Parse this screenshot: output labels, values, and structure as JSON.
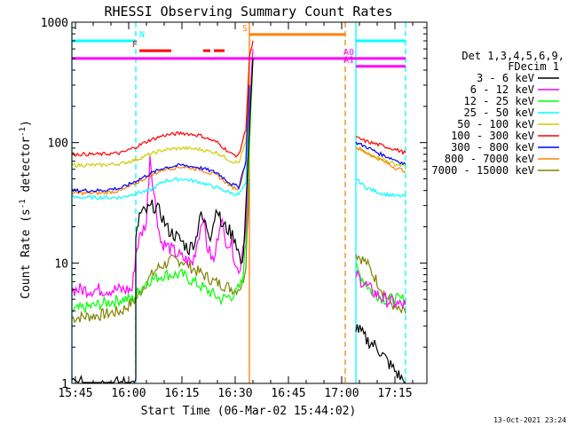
{
  "chart_data": {
    "type": "line",
    "title": "RHESSI Observing Summary Count Rates",
    "xlabel": "Start Time (06-Mar-02 15:44:02)",
    "ylabel_main": "Count Rate (s",
    "ylabel_sup1": "-1",
    "ylabel_mid": " detector",
    "ylabel_sup2": "-1",
    "ylabel_end": ")",
    "y_scale": "log",
    "ylim": [
      1,
      1000
    ],
    "y_ticks": [
      {
        "value": 1,
        "label": "1"
      },
      {
        "value": 10,
        "label": "10"
      },
      {
        "value": 100,
        "label": "100"
      },
      {
        "value": 1000,
        "label": "1000"
      }
    ],
    "xlim": [
      "15:44",
      "17:24"
    ],
    "x_ticks": [
      {
        "value": "15:45",
        "label": "15:45"
      },
      {
        "value": "16:00",
        "label": "16:00"
      },
      {
        "value": "16:15",
        "label": "16:15"
      },
      {
        "value": "16:30",
        "label": "16:30"
      },
      {
        "value": "16:45",
        "label": "16:45"
      },
      {
        "value": "17:00",
        "label": "17:00"
      },
      {
        "value": "17:15",
        "label": "17:15"
      }
    ],
    "legend_header": [
      "Det 1,3,4,5,6,9,",
      "FDecim 1"
    ],
    "legend_position": "right",
    "series": [
      {
        "name": "3 - 6 keV",
        "color": "#000000",
        "segments": [
          [
            [
              "15:44",
              1
            ],
            [
              "16:02",
              1
            ],
            [
              "16:02",
              15
            ],
            [
              "16:03",
              25
            ],
            [
              "16:05",
              27
            ],
            [
              "16:07",
              30
            ],
            [
              "16:09",
              26
            ],
            [
              "16:11",
              19
            ],
            [
              "16:13",
              17
            ],
            [
              "16:15",
              15
            ],
            [
              "16:17",
              13
            ],
            [
              "16:19",
              16
            ],
            [
              "16:20",
              25
            ],
            [
              "16:22",
              20
            ],
            [
              "16:23",
              17
            ],
            [
              "16:25",
              30
            ],
            [
              "16:26",
              21
            ],
            [
              "16:28",
              19
            ],
            [
              "16:30",
              16
            ],
            [
              "16:32",
              9
            ],
            [
              "16:33",
              30
            ],
            [
              "16:34",
              120
            ],
            [
              "16:35",
              500
            ]
          ],
          [
            [
              "17:04",
              3
            ],
            [
              "17:07",
              2.3
            ],
            [
              "17:10",
              2
            ],
            [
              "17:13",
              1.5
            ],
            [
              "17:18",
              1
            ]
          ]
        ]
      },
      {
        "name": "6 - 12 keV",
        "color": "#ff00ff",
        "segments": [
          [
            [
              "15:44",
              6
            ],
            [
              "15:58",
              6
            ],
            [
              "16:01",
              6
            ],
            [
              "16:02",
              12
            ],
            [
              "16:03",
              16
            ],
            [
              "16:05",
              22
            ],
            [
              "16:06",
              80
            ],
            [
              "16:07",
              40
            ],
            [
              "16:09",
              15
            ],
            [
              "16:12",
              13
            ],
            [
              "16:15",
              11
            ],
            [
              "16:18",
              10
            ],
            [
              "16:21",
              25
            ],
            [
              "16:22",
              14
            ],
            [
              "16:24",
              10
            ],
            [
              "16:26",
              25
            ],
            [
              "16:27",
              16
            ],
            [
              "16:29",
              14
            ],
            [
              "16:31",
              8
            ],
            [
              "16:33",
              20
            ],
            [
              "16:34",
              150
            ],
            [
              "16:35",
              600
            ]
          ],
          [
            [
              "17:04",
              8
            ],
            [
              "17:08",
              6
            ],
            [
              "17:12",
              5
            ],
            [
              "17:16",
              4.5
            ],
            [
              "17:18",
              4.5
            ]
          ]
        ]
      },
      {
        "name": "12 - 25 keV",
        "color": "#00ff00",
        "segments": [
          [
            [
              "15:44",
              4
            ],
            [
              "15:58",
              5
            ],
            [
              "16:01",
              5
            ],
            [
              "16:05",
              7
            ],
            [
              "16:10",
              8
            ],
            [
              "16:15",
              8
            ],
            [
              "16:20",
              6.5
            ],
            [
              "16:26",
              5
            ],
            [
              "16:30",
              5.5
            ],
            [
              "16:32",
              7
            ],
            [
              "16:33",
              15
            ],
            [
              "16:34",
              100
            ],
            [
              "16:35",
              500
            ]
          ],
          [
            [
              "17:04",
              9
            ],
            [
              "17:08",
              6
            ],
            [
              "17:12",
              5
            ],
            [
              "17:16",
              5
            ],
            [
              "17:18",
              5
            ]
          ]
        ]
      },
      {
        "name": "25 - 50 keV",
        "color": "#00ffff",
        "segments": [
          [
            [
              "15:44",
              35
            ],
            [
              "15:52",
              35
            ],
            [
              "15:58",
              35
            ],
            [
              "16:02",
              38
            ],
            [
              "16:06",
              40
            ],
            [
              "16:10",
              48
            ],
            [
              "16:15",
              50
            ],
            [
              "16:20",
              47
            ],
            [
              "16:25",
              42
            ],
            [
              "16:29",
              38
            ],
            [
              "16:31",
              37
            ],
            [
              "16:33",
              45
            ],
            [
              "16:34",
              300
            ]
          ],
          [
            [
              "17:04",
              50
            ],
            [
              "17:07",
              42
            ],
            [
              "17:11",
              38
            ],
            [
              "17:15",
              36
            ],
            [
              "17:18",
              36
            ]
          ]
        ]
      },
      {
        "name": "50 - 100 keV",
        "color": "#cccc00",
        "segments": [
          [
            [
              "15:44",
              65
            ],
            [
              "15:52",
              65
            ],
            [
              "15:58",
              67
            ],
            [
              "16:02",
              72
            ],
            [
              "16:06",
              80
            ],
            [
              "16:10",
              87
            ],
            [
              "16:15",
              90
            ],
            [
              "16:20",
              88
            ],
            [
              "16:25",
              82
            ],
            [
              "16:29",
              70
            ],
            [
              "16:31",
              68
            ],
            [
              "16:33",
              100
            ],
            [
              "16:34",
              400
            ]
          ],
          [
            [
              "17:04",
              90
            ],
            [
              "17:07",
              82
            ],
            [
              "17:11",
              74
            ],
            [
              "17:15",
              66
            ],
            [
              "17:18",
              64
            ]
          ]
        ]
      },
      {
        "name": "100 - 300 keV",
        "color": "#ff0000",
        "segments": [
          [
            [
              "15:44",
              80
            ],
            [
              "15:52",
              80
            ],
            [
              "15:58",
              82
            ],
            [
              "16:02",
              92
            ],
            [
              "16:06",
              105
            ],
            [
              "16:10",
              115
            ],
            [
              "16:15",
              120
            ],
            [
              "16:20",
              115
            ],
            [
              "16:25",
              100
            ],
            [
              "16:29",
              80
            ],
            [
              "16:31",
              78
            ],
            [
              "16:33",
              130
            ],
            [
              "16:34",
              500
            ],
            [
              "16:35",
              700
            ]
          ],
          [
            [
              "17:04",
              110
            ],
            [
              "17:07",
              102
            ],
            [
              "17:11",
              95
            ],
            [
              "17:15",
              88
            ],
            [
              "17:18",
              82
            ]
          ]
        ]
      },
      {
        "name": "300 - 800 keV",
        "color": "#0000ff",
        "segments": [
          [
            [
              "15:44",
              40
            ],
            [
              "15:52",
              40
            ],
            [
              "15:58",
              42
            ],
            [
              "16:02",
              48
            ],
            [
              "16:06",
              55
            ],
            [
              "16:10",
              62
            ],
            [
              "16:15",
              65
            ],
            [
              "16:20",
              62
            ],
            [
              "16:25",
              56
            ],
            [
              "16:29",
              45
            ],
            [
              "16:31",
              43
            ],
            [
              "16:33",
              70
            ],
            [
              "16:34",
              300
            ]
          ],
          [
            [
              "17:04",
              100
            ],
            [
              "17:07",
              92
            ],
            [
              "17:11",
              80
            ],
            [
              "17:15",
              72
            ],
            [
              "17:18",
              66
            ]
          ]
        ]
      },
      {
        "name": "800 - 7000 keV",
        "color": "#ff8000",
        "segments": [
          [
            [
              "15:44",
              38
            ],
            [
              "15:52",
              38
            ],
            [
              "15:58",
              40
            ],
            [
              "16:02",
              46
            ],
            [
              "16:06",
              53
            ],
            [
              "16:10",
              60
            ],
            [
              "16:15",
              63
            ],
            [
              "16:20",
              60
            ],
            [
              "16:25",
              53
            ],
            [
              "16:29",
              43
            ],
            [
              "16:31",
              41
            ],
            [
              "16:33",
              68
            ],
            [
              "16:34",
              300
            ]
          ],
          [
            [
              "17:04",
              92
            ],
            [
              "17:07",
              82
            ],
            [
              "17:11",
              72
            ],
            [
              "17:15",
              62
            ],
            [
              "17:18",
              58
            ]
          ]
        ]
      },
      {
        "name": "7000 - 15000 keV",
        "color": "#808000",
        "segments": [
          [
            [
              "15:44",
              3.5
            ],
            [
              "15:52",
              3.7
            ],
            [
              "15:58",
              4
            ],
            [
              "16:02",
              5
            ],
            [
              "16:05",
              7
            ],
            [
              "16:08",
              9
            ],
            [
              "16:12",
              10.5
            ],
            [
              "16:15",
              10.5
            ],
            [
              "16:18",
              9
            ],
            [
              "16:21",
              8
            ],
            [
              "16:24",
              7
            ],
            [
              "16:27",
              6.5
            ],
            [
              "16:30",
              6
            ],
            [
              "16:32",
              6.5
            ],
            [
              "16:33",
              10
            ],
            [
              "16:34",
              50
            ]
          ],
          [
            [
              "17:04",
              12
            ],
            [
              "17:07",
              10
            ],
            [
              "17:10",
              7
            ],
            [
              "17:13",
              5
            ],
            [
              "17:16",
              4
            ],
            [
              "17:18",
              3.8
            ]
          ]
        ]
      }
    ],
    "flag_lines": [
      {
        "label": "N",
        "color": "#00ffff",
        "value": 700,
        "segments": [
          [
            "15:44",
            "16:02"
          ],
          [
            "17:04",
            "17:18"
          ]
        ]
      },
      {
        "label": "F",
        "color": "#ff0000",
        "value": 580,
        "segments": [
          [
            "16:03",
            "16:12"
          ],
          [
            "16:21",
            "16:23"
          ],
          [
            "16:24",
            "16:27"
          ]
        ]
      },
      {
        "label": "S",
        "color": "#ff8000",
        "value": 790,
        "segments": [
          [
            "16:34",
            "17:01"
          ]
        ]
      },
      {
        "label": "A0",
        "color": "#ff00ff",
        "value": 500,
        "segments": [
          [
            "15:44",
            "17:18"
          ]
        ]
      },
      {
        "label": "A1",
        "color": "#ff00ff",
        "value": 430,
        "segments": [
          [
            "17:04",
            "17:18"
          ]
        ]
      }
    ],
    "vertical_lines": [
      {
        "time": "15:44",
        "color": "#00ffff",
        "style": "solid"
      },
      {
        "time": "16:02",
        "color": "#00ffff",
        "style": "dashed"
      },
      {
        "time": "16:34",
        "color": "#ff8000",
        "style": "solid"
      },
      {
        "time": "17:01",
        "color": "#ff8000",
        "style": "dashed"
      },
      {
        "time": "17:04",
        "color": "#00ffff",
        "style": "solid"
      },
      {
        "time": "17:18",
        "color": "#00ffff",
        "style": "dashed"
      }
    ]
  },
  "timestamp": "13-Oct-2021 23:24"
}
